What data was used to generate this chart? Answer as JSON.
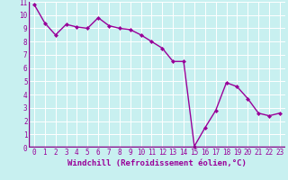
{
  "x": [
    0,
    1,
    2,
    3,
    4,
    5,
    6,
    7,
    8,
    9,
    10,
    11,
    12,
    13,
    14,
    15,
    16,
    17,
    18,
    19,
    20,
    21,
    22,
    23
  ],
  "y": [
    10.8,
    9.4,
    8.5,
    9.3,
    9.1,
    9.0,
    9.8,
    9.2,
    9.0,
    8.9,
    8.5,
    8.0,
    7.5,
    6.5,
    6.5,
    0.1,
    1.5,
    2.8,
    4.9,
    4.6,
    3.7,
    2.6,
    2.4,
    2.6
  ],
  "line_color": "#990099",
  "marker": "D",
  "marker_size": 2.0,
  "bg_color": "#c8f0f0",
  "grid_color": "#ffffff",
  "xlabel": "Windchill (Refroidissement éolien,°C)",
  "xlim": [
    -0.5,
    23.5
  ],
  "ylim": [
    0,
    11
  ],
  "xticks": [
    0,
    1,
    2,
    3,
    4,
    5,
    6,
    7,
    8,
    9,
    10,
    11,
    12,
    13,
    14,
    15,
    16,
    17,
    18,
    19,
    20,
    21,
    22,
    23
  ],
  "yticks": [
    0,
    1,
    2,
    3,
    4,
    5,
    6,
    7,
    8,
    9,
    10,
    11
  ],
  "xlabel_fontsize": 6.5,
  "tick_fontsize": 5.5,
  "line_width": 1.0,
  "separator_color": "#880088",
  "separator_lw": 2.5
}
